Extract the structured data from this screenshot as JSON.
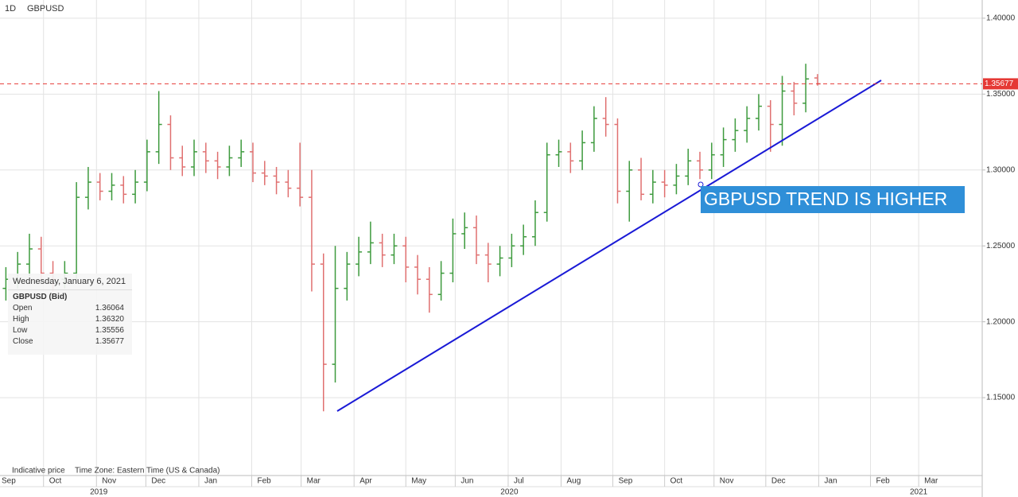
{
  "chart_data": {
    "type": "ohlc",
    "interval": "1D",
    "symbol": "GBPUSD",
    "open": [
      1.222,
      1.228,
      1.238,
      1.248,
      1.232,
      1.228,
      1.232,
      1.282,
      1.292,
      1.286,
      1.29,
      1.284,
      1.292,
      1.312,
      1.33,
      1.308,
      1.302,
      1.312,
      1.306,
      1.302,
      1.308,
      1.312,
      1.298,
      1.296,
      1.292,
      1.288,
      1.282,
      1.238,
      1.172,
      1.222,
      1.238,
      1.246,
      1.252,
      1.244,
      1.25,
      1.236,
      1.228,
      1.218,
      1.232,
      1.258,
      1.262,
      1.244,
      1.238,
      1.242,
      1.25,
      1.256,
      1.272,
      1.31,
      1.312,
      1.306,
      1.318,
      1.334,
      1.33,
      1.286,
      1.3,
      1.284,
      1.292,
      1.29,
      1.296,
      1.306,
      1.3,
      1.31,
      1.32,
      1.326,
      1.334,
      1.342,
      1.33,
      1.352,
      1.344,
      1.36064
    ],
    "high": [
      1.236,
      1.246,
      1.258,
      1.256,
      1.24,
      1.24,
      1.292,
      1.302,
      1.298,
      1.298,
      1.296,
      1.3,
      1.32,
      1.352,
      1.336,
      1.316,
      1.32,
      1.318,
      1.312,
      1.316,
      1.32,
      1.318,
      1.306,
      1.302,
      1.3,
      1.318,
      1.3,
      1.245,
      1.25,
      1.246,
      1.256,
      1.266,
      1.258,
      1.258,
      1.256,
      1.244,
      1.236,
      1.24,
      1.268,
      1.272,
      1.27,
      1.252,
      1.25,
      1.258,
      1.264,
      1.28,
      1.318,
      1.32,
      1.318,
      1.326,
      1.342,
      1.348,
      1.334,
      1.306,
      1.308,
      1.3,
      1.3,
      1.304,
      1.314,
      1.312,
      1.318,
      1.328,
      1.334,
      1.342,
      1.35,
      1.346,
      1.362,
      1.358,
      1.37,
      1.3632
    ],
    "low": [
      1.214,
      1.222,
      1.23,
      1.228,
      1.22,
      1.222,
      1.228,
      1.274,
      1.28,
      1.28,
      1.278,
      1.278,
      1.286,
      1.304,
      1.3,
      1.296,
      1.296,
      1.298,
      1.294,
      1.296,
      1.302,
      1.292,
      1.29,
      1.284,
      1.282,
      1.276,
      1.22,
      1.141,
      1.16,
      1.214,
      1.23,
      1.238,
      1.236,
      1.238,
      1.226,
      1.218,
      1.206,
      1.214,
      1.226,
      1.248,
      1.238,
      1.226,
      1.23,
      1.236,
      1.244,
      1.25,
      1.266,
      1.302,
      1.298,
      1.3,
      1.312,
      1.322,
      1.278,
      1.266,
      1.28,
      1.278,
      1.282,
      1.284,
      1.29,
      1.294,
      1.294,
      1.302,
      1.312,
      1.318,
      1.326,
      1.312,
      1.316,
      1.336,
      1.338,
      1.35556
    ],
    "close": [
      1.228,
      1.238,
      1.248,
      1.232,
      1.228,
      1.232,
      1.282,
      1.292,
      1.286,
      1.29,
      1.284,
      1.292,
      1.312,
      1.33,
      1.308,
      1.302,
      1.312,
      1.306,
      1.302,
      1.308,
      1.312,
      1.298,
      1.296,
      1.292,
      1.288,
      1.282,
      1.238,
      1.172,
      1.222,
      1.238,
      1.246,
      1.252,
      1.244,
      1.25,
      1.236,
      1.228,
      1.218,
      1.232,
      1.258,
      1.262,
      1.244,
      1.238,
      1.242,
      1.25,
      1.256,
      1.272,
      1.31,
      1.312,
      1.306,
      1.318,
      1.334,
      1.33,
      1.286,
      1.3,
      1.284,
      1.292,
      1.29,
      1.296,
      1.306,
      1.3,
      1.31,
      1.32,
      1.326,
      1.334,
      1.342,
      1.33,
      1.352,
      1.344,
      1.36,
      1.35677
    ],
    "up_color": "#3d9a3d",
    "down_color": "#e07070",
    "ylim": [
      1.0987,
      1.412
    ],
    "yticks": [
      {
        "value": 1.15,
        "label": "1.15000"
      },
      {
        "value": 1.2,
        "label": "1.20000"
      },
      {
        "value": 1.25,
        "label": "1.25000"
      },
      {
        "value": 1.3,
        "label": "1.30000"
      },
      {
        "value": 1.35,
        "label": "1.35000"
      },
      {
        "value": 1.4,
        "label": "1.40000"
      }
    ],
    "xlim": [
      -0.5,
      83
    ],
    "xticks": [
      {
        "value": -1.1,
        "label": "Sep"
      },
      {
        "value": 3.2,
        "label": "Oct"
      },
      {
        "value": 7.7,
        "label": "Nov"
      },
      {
        "value": 11.9,
        "label": "Dec"
      },
      {
        "value": 16.4,
        "label": "Jan"
      },
      {
        "value": 20.9,
        "label": "Feb"
      },
      {
        "value": 25.1,
        "label": "Mar"
      },
      {
        "value": 29.6,
        "label": "Apr"
      },
      {
        "value": 34.0,
        "label": "May"
      },
      {
        "value": 38.2,
        "label": "Jun"
      },
      {
        "value": 42.7,
        "label": "Jul"
      },
      {
        "value": 47.2,
        "label": "Aug"
      },
      {
        "value": 51.6,
        "label": "Sep"
      },
      {
        "value": 56.0,
        "label": "Oct"
      },
      {
        "value": 60.2,
        "label": "Nov"
      },
      {
        "value": 64.6,
        "label": "Dec"
      },
      {
        "value": 69.1,
        "label": "Jan"
      },
      {
        "value": 73.5,
        "label": "Feb"
      },
      {
        "value": 77.6,
        "label": "Mar"
      }
    ],
    "year_ticks": [
      {
        "value": 7.9,
        "label": "2019"
      },
      {
        "value": 42.8,
        "label": "2020"
      },
      {
        "value": 77.6,
        "label": "2021"
      }
    ],
    "grid": true,
    "last_price": 1.35677,
    "last_price_color": "#e53935",
    "annotation": "GBPUSD TREND IS HIGHER",
    "footer": [
      "Indicative price",
      "Time Zone: Eastern Time (US & Canada)"
    ],
    "info": {
      "date": "Wednesday, January 6, 2021",
      "symbol": "GBPUSD (Bid)",
      "rows": [
        [
          "Open",
          "1.36064"
        ],
        [
          "High",
          "1.36320"
        ],
        [
          "Low",
          "1.35556"
        ],
        [
          "Close",
          "1.35677"
        ]
      ]
    }
  }
}
